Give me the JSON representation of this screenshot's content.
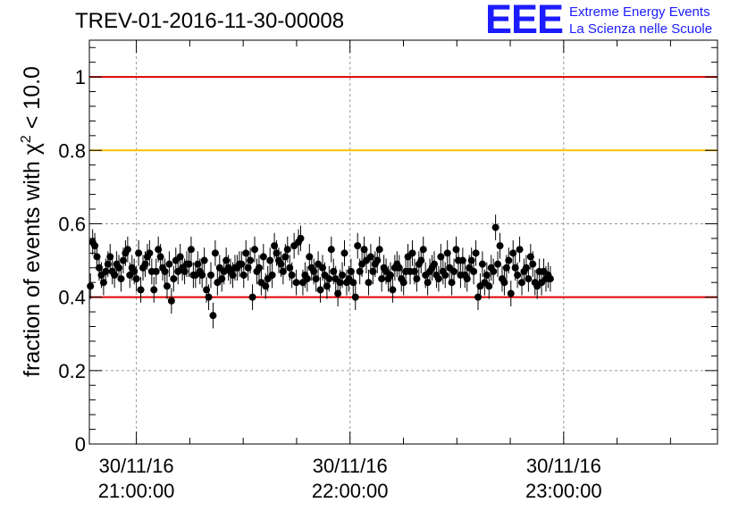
{
  "header": {
    "title": "TREV-01-2016-11-30-00008",
    "logo_letters": "EEE",
    "logo_line1": "Extreme Energy Events",
    "logo_line2": "La Scienza nelle Scuole"
  },
  "colors": {
    "upper_line": "#e00000",
    "mid_line": "#ffbf00",
    "lower_line": "#e00000",
    "marker": "#000000",
    "grid": "#999999"
  },
  "chart_data": {
    "type": "scatter",
    "title": "TREV-01-2016-11-30-00008",
    "ylabel_prefix": "fraction of events with χ",
    "ylabel_exp": "2",
    "ylabel_suffix": " < 10.0",
    "ylim": [
      0,
      1.1
    ],
    "y_ticks": [
      0,
      0.2,
      0.4,
      0.6,
      0.8,
      1
    ],
    "y_tick_labels": [
      "0",
      "0.2",
      "0.4",
      "0.6",
      "0.8",
      "1"
    ],
    "x_range_hours": [
      20.78,
      23.72
    ],
    "x_ticks": [
      {
        "hour": 21,
        "date": "30/11/16",
        "time": "21:00:00"
      },
      {
        "hour": 22,
        "date": "30/11/16",
        "time": "22:00:00"
      },
      {
        "hour": 23,
        "date": "30/11/16",
        "time": "23:00:00"
      }
    ],
    "reference_lines": [
      {
        "y": 1.0,
        "color": "#e00000"
      },
      {
        "y": 0.8,
        "color": "#ffbf00"
      },
      {
        "y": 0.4,
        "color": "#e00000"
      }
    ],
    "grid": true,
    "error_bar": 0.035,
    "series": [
      {
        "name": "fraction",
        "x_start_hour": 20.785,
        "x_step_hour": 0.01025,
        "values": [
          0.43,
          0.55,
          0.54,
          0.51,
          0.48,
          0.46,
          0.44,
          0.47,
          0.49,
          0.51,
          0.47,
          0.46,
          0.49,
          0.48,
          0.45,
          0.5,
          0.52,
          0.53,
          0.46,
          0.48,
          0.47,
          0.45,
          0.52,
          0.42,
          0.48,
          0.49,
          0.51,
          0.52,
          0.47,
          0.42,
          0.47,
          0.53,
          0.51,
          0.48,
          0.47,
          0.43,
          0.49,
          0.39,
          0.45,
          0.5,
          0.47,
          0.51,
          0.48,
          0.47,
          0.49,
          0.49,
          0.53,
          0.46,
          0.46,
          0.49,
          0.47,
          0.46,
          0.5,
          0.42,
          0.4,
          0.46,
          0.35,
          0.52,
          0.44,
          0.48,
          0.45,
          0.47,
          0.5,
          0.48,
          0.47,
          0.46,
          0.48,
          0.48,
          0.49,
          0.49,
          0.46,
          0.52,
          0.48,
          0.5,
          0.4,
          0.53,
          0.47,
          0.48,
          0.44,
          0.51,
          0.43,
          0.45,
          0.5,
          0.46,
          0.54,
          0.52,
          0.5,
          0.49,
          0.47,
          0.51,
          0.53,
          0.48,
          0.46,
          0.54,
          0.44,
          0.55,
          0.56,
          0.44,
          0.46,
          0.45,
          0.51,
          0.48,
          0.47,
          0.45,
          0.49,
          0.42,
          0.48,
          0.46,
          0.43,
          0.45,
          0.53,
          0.47,
          0.45,
          0.41,
          0.44,
          0.46,
          0.52,
          0.44,
          0.45,
          0.47,
          0.44,
          0.4,
          0.54,
          0.47,
          0.49,
          0.53,
          0.5,
          0.44,
          0.51,
          0.47,
          0.49,
          0.5,
          0.53,
          0.45,
          0.48,
          0.47,
          0.45,
          0.46,
          0.42,
          0.48,
          0.49,
          0.48,
          0.45,
          0.44,
          0.47,
          0.51,
          0.47,
          0.52,
          0.47,
          0.45,
          0.49,
          0.5,
          0.53,
          0.46,
          0.44,
          0.47,
          0.48,
          0.49,
          0.46,
          0.45,
          0.51,
          0.47,
          0.46,
          0.52,
          0.48,
          0.44,
          0.47,
          0.53,
          0.5,
          0.46,
          0.5,
          0.46,
          0.45,
          0.48,
          0.5,
          0.47,
          0.52,
          0.4,
          0.43,
          0.49,
          0.44,
          0.46,
          0.43,
          0.48,
          0.47,
          0.59,
          0.49,
          0.54,
          0.45,
          0.44,
          0.48,
          0.5,
          0.41,
          0.52,
          0.48,
          0.46,
          0.53,
          0.44,
          0.47,
          0.48,
          0.45,
          0.51,
          0.49,
          0.44,
          0.43,
          0.47,
          0.44,
          0.47,
          0.45,
          0.46,
          0.45
        ]
      }
    ]
  }
}
